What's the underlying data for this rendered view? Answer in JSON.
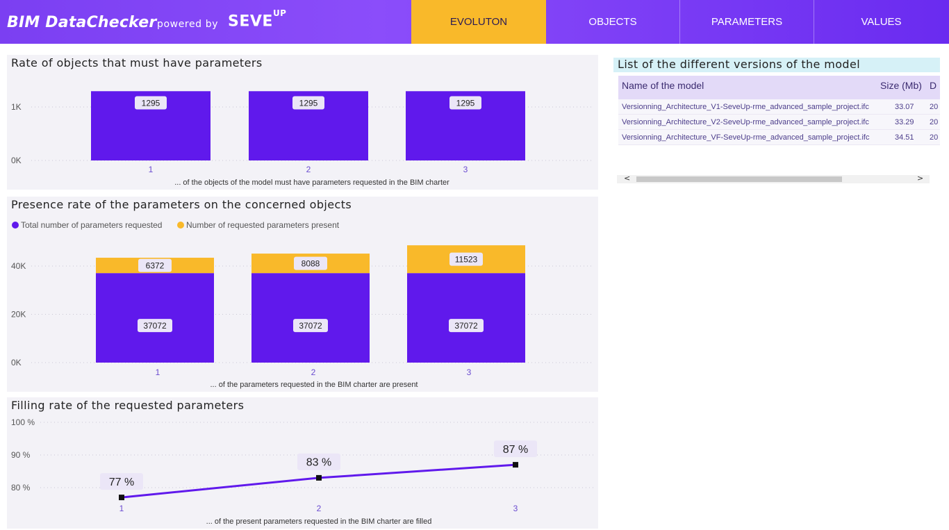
{
  "header": {
    "brand": "BIM DataChecker",
    "powered_by": "powered by",
    "seve": "SEVE",
    "up": "UP",
    "tabs": [
      "EVOLUTON",
      "OBJECTS",
      "PARAMETERS",
      "VALUES"
    ],
    "active_tab": "EVOLUTON"
  },
  "colors": {
    "purple": "#6019ec",
    "yellow": "#f9b92a",
    "header_purple": "#7b3ff2"
  },
  "panels": {
    "objects_title": "Rate of objects that must have parameters",
    "presence_title": "Presence rate of the parameters on the concerned objects",
    "filling_title": "Filling rate of the requested parameters"
  },
  "chart_data": [
    {
      "type": "bar",
      "title": "Rate of objects that must have parameters",
      "categories": [
        "1",
        "2",
        "3"
      ],
      "values": [
        1295,
        1295,
        1295
      ],
      "xlabel": "... of the objects of the model must have parameters requested in the BIM charter",
      "yticks": [
        "0K",
        "1K"
      ],
      "ylim": [
        0,
        1300
      ],
      "grid": true
    },
    {
      "type": "bar",
      "stacked": true,
      "title": "Presence rate of the parameters on the concerned objects",
      "categories": [
        "1",
        "2",
        "3"
      ],
      "series": [
        {
          "name": "Total number of parameters requested",
          "values": [
            37072,
            37072,
            37072
          ],
          "color": "#6019ec"
        },
        {
          "name": "Number of requested parameters present",
          "values": [
            6372,
            8088,
            11523
          ],
          "color": "#f9b92a"
        }
      ],
      "xlabel": "... of the parameters requested in the BIM charter are present",
      "yticks": [
        "0K",
        "20K",
        "40K"
      ],
      "ylim": [
        0,
        50000
      ],
      "legend": "top-left",
      "grid": true
    },
    {
      "type": "line",
      "title": "Filling rate of the requested parameters",
      "categories": [
        "1",
        "2",
        "3"
      ],
      "values": [
        77,
        83,
        87
      ],
      "labels": [
        "77 %",
        "83 %",
        "87 %"
      ],
      "xlabel": "... of the present parameters requested in the BIM charter are filled",
      "yticks": [
        "80 %",
        "90 %",
        "100 %"
      ],
      "ylim": [
        75,
        100
      ],
      "grid": true
    }
  ],
  "versions_table": {
    "title": "List of the different versions of the model",
    "columns": [
      "Name of the model",
      "Size (Mb)",
      "D"
    ],
    "rows": [
      {
        "name": "Versionning_Architecture_V1-SeveUp-rme_advanced_sample_project.ifc",
        "size": "33.07",
        "d": "20"
      },
      {
        "name": "Versionning_Architecture_V2-SeveUp-rme_advanced_sample_project.ifc",
        "size": "33.29",
        "d": "20"
      },
      {
        "name": "Versionning_Architecture_VF-SeveUp-rme_advanced_sample_project.ifc",
        "size": "34.51",
        "d": "20"
      }
    ],
    "scroll_left": "<",
    "scroll_right": ">"
  }
}
